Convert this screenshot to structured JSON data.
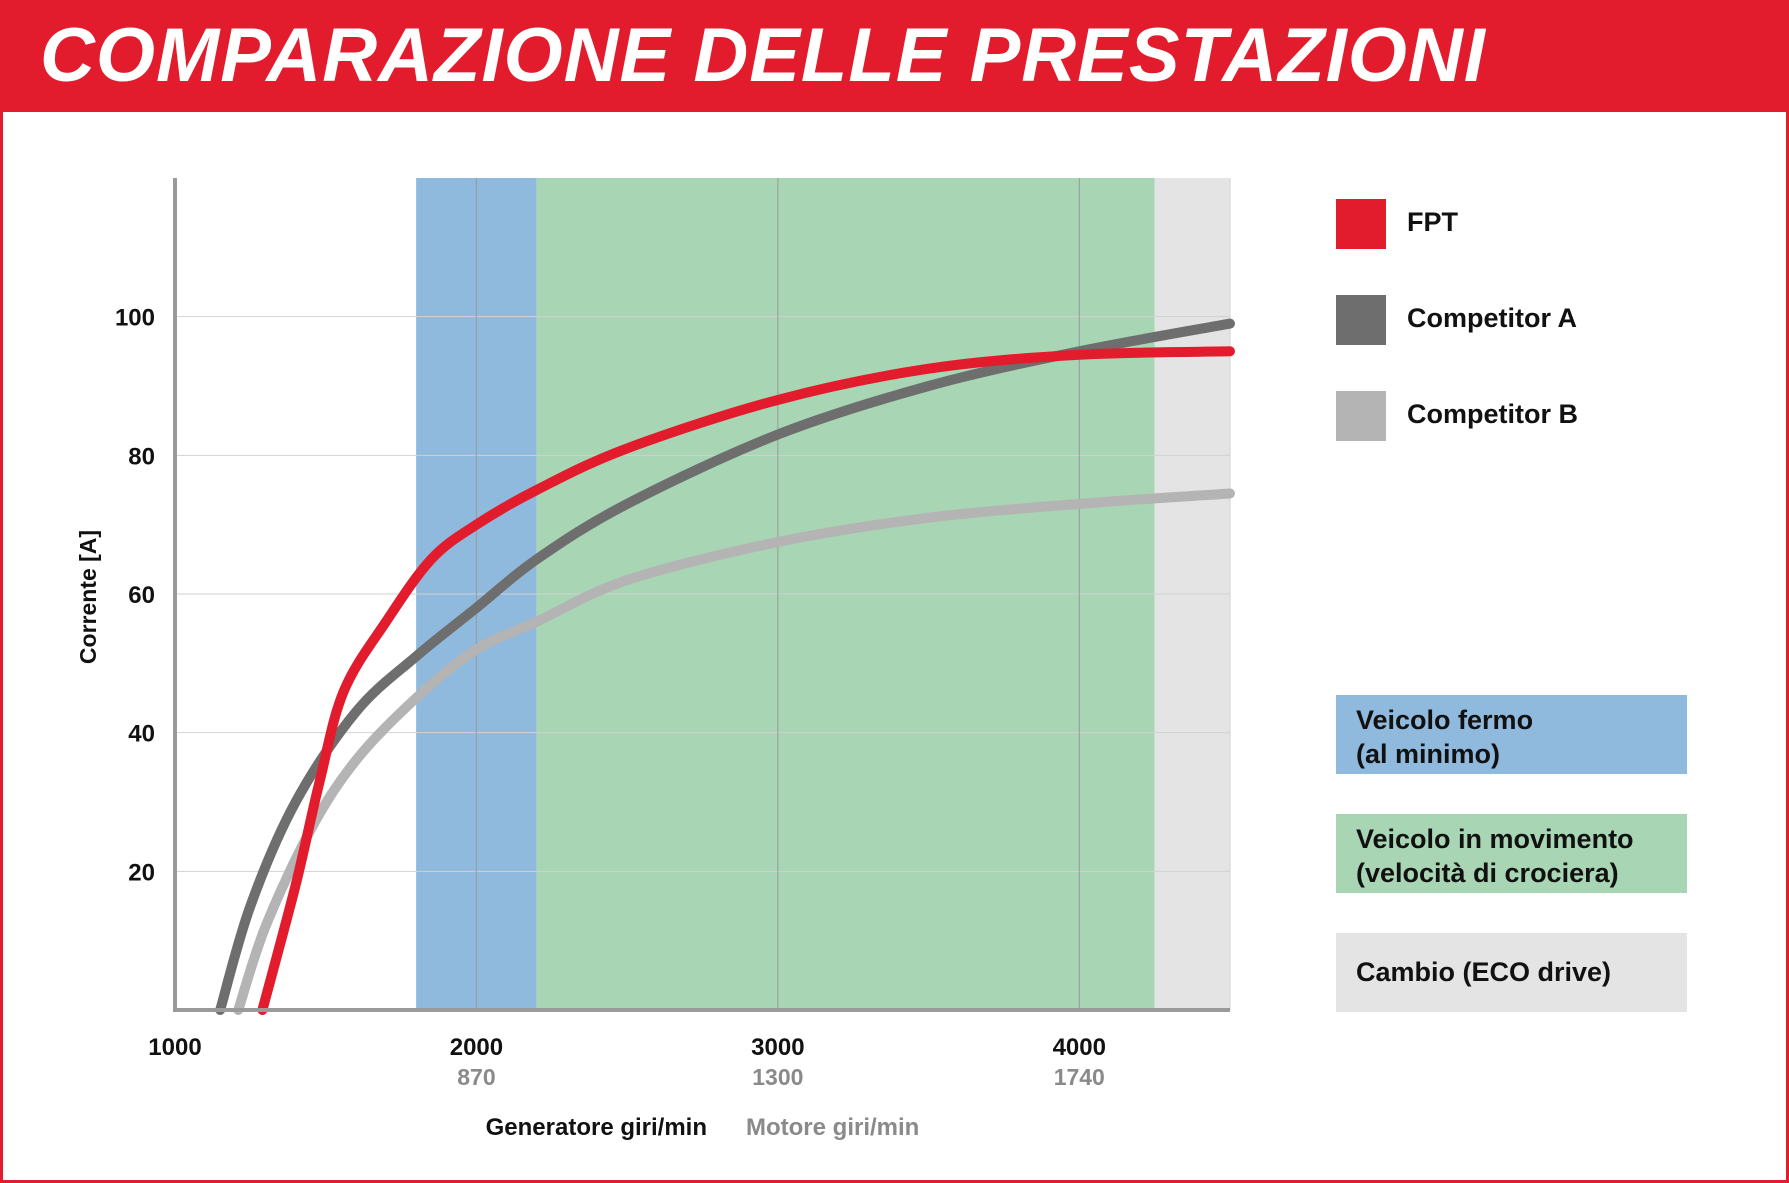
{
  "header": {
    "title": "COMPARAZIONE DELLE PRESTAZIONI"
  },
  "colors": {
    "brand_red": "#e31c2d",
    "fpt": "#e31c2d",
    "competitor_a": "#6e6e6e",
    "competitor_b": "#b4b4b4",
    "zone_idle": "#8fb9dd",
    "zone_cruise": "#a8d5b3",
    "zone_eco": "#e4e4e4"
  },
  "legend": [
    {
      "label": "FPT",
      "color": "#e31c2d"
    },
    {
      "label": "Competitor A",
      "color": "#6e6e6e"
    },
    {
      "label": "Competitor B",
      "color": "#b4b4b4"
    }
  ],
  "zones_legend": [
    {
      "lines": [
        "Veicolo fermo",
        "(al minimo)"
      ],
      "color": "#8fb9dd"
    },
    {
      "lines": [
        "Veicolo in movimento",
        "(velocità di crociera)"
      ],
      "color": "#a8d5b3"
    },
    {
      "lines": [
        "Cambio (ECO drive)"
      ],
      "color": "#e4e4e4"
    }
  ],
  "chart_data": {
    "type": "line",
    "title": "COMPARAZIONE DELLE PRESTAZIONI",
    "ylabel": "Corrente [A]",
    "xlabel": "Generatore giri/min",
    "xlabel_secondary": "Motore giri/min",
    "xlim": [
      1000,
      4500
    ],
    "ylim": [
      0,
      120
    ],
    "y_ticks": [
      20,
      40,
      60,
      80,
      100
    ],
    "x_ticks": [
      {
        "value": 1000,
        "label": "1000",
        "sublabel": ""
      },
      {
        "value": 2000,
        "label": "2000",
        "sublabel": "870"
      },
      {
        "value": 3000,
        "label": "3000",
        "sublabel": "1300"
      },
      {
        "value": 4000,
        "label": "4000",
        "sublabel": "1740"
      }
    ],
    "grid": true,
    "legend_position": "right",
    "bands": [
      {
        "name": "Veicolo fermo (al minimo)",
        "from": 1800,
        "to": 2200,
        "color": "#8fb9dd"
      },
      {
        "name": "Veicolo in movimento (velocità di crociera)",
        "from": 2200,
        "to": 4250,
        "color": "#a8d5b3"
      },
      {
        "name": "Cambio (ECO drive)",
        "from": 4250,
        "to": 4500,
        "color": "#e4e4e4"
      }
    ],
    "series": [
      {
        "name": "FPT",
        "color": "#e31c2d",
        "x": [
          1290,
          1400,
          1480,
          1560,
          1700,
          1850,
          2000,
          2200,
          2500,
          3000,
          3500,
          4000,
          4500
        ],
        "y": [
          0,
          18,
          33,
          46,
          56,
          65,
          70,
          75,
          81,
          88,
          92.5,
          94.5,
          95
        ]
      },
      {
        "name": "Competitor A",
        "color": "#6e6e6e",
        "x": [
          1150,
          1250,
          1400,
          1600,
          1800,
          2000,
          2200,
          2500,
          3000,
          3500,
          4000,
          4500
        ],
        "y": [
          0,
          15,
          30,
          43,
          51,
          58,
          65,
          73,
          83,
          90,
          95,
          99
        ]
      },
      {
        "name": "Competitor B",
        "color": "#b4b4b4",
        "x": [
          1210,
          1300,
          1450,
          1600,
          1800,
          2000,
          2200,
          2500,
          3000,
          3500,
          4000,
          4500
        ],
        "y": [
          0,
          12,
          26,
          36,
          45,
          52,
          56,
          62,
          67.5,
          71,
          73,
          74.5
        ]
      }
    ]
  }
}
